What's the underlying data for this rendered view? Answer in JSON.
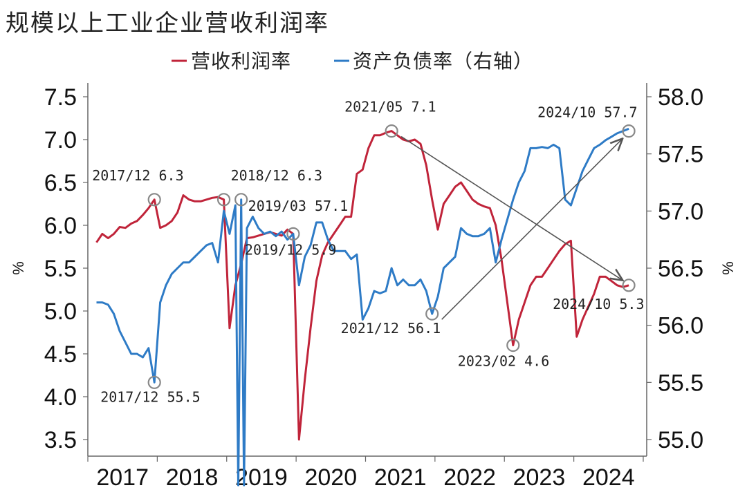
{
  "chart_data": {
    "type": "line",
    "title": "规模以上工业企业营收利润率",
    "y_unit_left": "%",
    "y_unit_right": "%",
    "left_ylim": [
      3.3,
      7.5
    ],
    "right_ylim": [
      54.9,
      58.0
    ],
    "left_ticks": [
      "7.5",
      "7.0",
      "6.5",
      "6.0",
      "5.5",
      "5.0",
      "4.5",
      "4.0",
      "3.5"
    ],
    "right_ticks": [
      "58.0",
      "57.5",
      "57.0",
      "56.5",
      "56.0",
      "55.5",
      "55.0"
    ],
    "x_ticks": [
      "2017",
      "2018",
      "2019",
      "2020",
      "2021",
      "2022",
      "2023",
      "2024"
    ],
    "grid": false,
    "legend_placement": "top-center",
    "series": [
      {
        "name": "营收利润率",
        "axis": "left",
        "color": "#c0243a",
        "points": [
          [
            "2017-02",
            5.8
          ],
          [
            "2017-03",
            5.9
          ],
          [
            "2017-04",
            5.85
          ],
          [
            "2017-05",
            5.9
          ],
          [
            "2017-06",
            5.98
          ],
          [
            "2017-07",
            5.97
          ],
          [
            "2017-08",
            6.02
          ],
          [
            "2017-09",
            6.05
          ],
          [
            "2017-10",
            6.12
          ],
          [
            "2017-11",
            6.2
          ],
          [
            "2017-12",
            6.3
          ],
          [
            "2018-01",
            5.97
          ],
          [
            "2018-02",
            6.0
          ],
          [
            "2018-03",
            6.05
          ],
          [
            "2018-04",
            6.15
          ],
          [
            "2018-05",
            6.35
          ],
          [
            "2018-06",
            6.3
          ],
          [
            "2018-07",
            6.28
          ],
          [
            "2018-08",
            6.28
          ],
          [
            "2018-09",
            6.3
          ],
          [
            "2018-10",
            6.32
          ],
          [
            "2018-11",
            6.33
          ],
          [
            "2018-12",
            6.3
          ],
          [
            "2019-01",
            4.8
          ],
          [
            "2019-02",
            5.3
          ],
          [
            "2019-03",
            5.55
          ],
          [
            "2019-04",
            5.85
          ],
          [
            "2019-05",
            5.86
          ],
          [
            "2019-06",
            5.88
          ],
          [
            "2019-07",
            5.9
          ],
          [
            "2019-08",
            5.92
          ],
          [
            "2019-09",
            5.9
          ],
          [
            "2019-10",
            5.88
          ],
          [
            "2019-11",
            5.95
          ],
          [
            "2019-12",
            5.9
          ],
          [
            "2020-01",
            3.5
          ],
          [
            "2020-02",
            4.2
          ],
          [
            "2020-03",
            4.8
          ],
          [
            "2020-04",
            5.35
          ],
          [
            "2020-05",
            5.65
          ],
          [
            "2020-06",
            5.8
          ],
          [
            "2020-07",
            5.9
          ],
          [
            "2020-08",
            6.0
          ],
          [
            "2020-09",
            6.1
          ],
          [
            "2020-10",
            6.1
          ],
          [
            "2020-11",
            6.6
          ],
          [
            "2020-12",
            6.65
          ],
          [
            "2021-01",
            6.9
          ],
          [
            "2021-02",
            7.05
          ],
          [
            "2021-03",
            7.05
          ],
          [
            "2021-04",
            7.08
          ],
          [
            "2021-05",
            7.1
          ],
          [
            "2021-06",
            7.05
          ],
          [
            "2021-07",
            7.0
          ],
          [
            "2021-08",
            6.98
          ],
          [
            "2021-09",
            7.0
          ],
          [
            "2021-10",
            6.95
          ],
          [
            "2021-11",
            6.7
          ],
          [
            "2021-12",
            6.3
          ],
          [
            "2022-01",
            5.95
          ],
          [
            "2022-02",
            6.25
          ],
          [
            "2022-03",
            6.35
          ],
          [
            "2022-04",
            6.45
          ],
          [
            "2022-05",
            6.5
          ],
          [
            "2022-06",
            6.4
          ],
          [
            "2022-07",
            6.3
          ],
          [
            "2022-08",
            6.25
          ],
          [
            "2022-09",
            6.22
          ],
          [
            "2022-10",
            6.2
          ],
          [
            "2022-11",
            6.0
          ],
          [
            "2022-12",
            5.6
          ],
          [
            "2023-02",
            4.6
          ],
          [
            "2023-03",
            4.9
          ],
          [
            "2023-04",
            5.1
          ],
          [
            "2023-05",
            5.3
          ],
          [
            "2023-06",
            5.4
          ],
          [
            "2023-07",
            5.4
          ],
          [
            "2023-08",
            5.5
          ],
          [
            "2023-09",
            5.6
          ],
          [
            "2023-10",
            5.7
          ],
          [
            "2023-11",
            5.78
          ],
          [
            "2023-12",
            5.82
          ],
          [
            "2024-01",
            4.7
          ],
          [
            "2024-02",
            4.9
          ],
          [
            "2024-03",
            5.05
          ],
          [
            "2024-04",
            5.2
          ],
          [
            "2024-05",
            5.4
          ],
          [
            "2024-06",
            5.4
          ],
          [
            "2024-07",
            5.35
          ],
          [
            "2024-08",
            5.3
          ],
          [
            "2024-09",
            5.28
          ],
          [
            "2024-10",
            5.3
          ]
        ]
      },
      {
        "name": "资产负债率（右轴）",
        "axis": "right",
        "color": "#2e7bc6",
        "points": [
          [
            "2017-02",
            56.2
          ],
          [
            "2017-03",
            56.2
          ],
          [
            "2017-04",
            56.18
          ],
          [
            "2017-05",
            56.1
          ],
          [
            "2017-06",
            55.95
          ],
          [
            "2017-07",
            55.85
          ],
          [
            "2017-08",
            55.75
          ],
          [
            "2017-09",
            55.75
          ],
          [
            "2017-10",
            55.72
          ],
          [
            "2017-11",
            55.8
          ],
          [
            "2017-12",
            55.5
          ],
          [
            "2018-01",
            56.2
          ],
          [
            "2018-02",
            56.35
          ],
          [
            "2018-03",
            56.45
          ],
          [
            "2018-04",
            56.5
          ],
          [
            "2018-05",
            56.55
          ],
          [
            "2018-06",
            56.55
          ],
          [
            "2018-07",
            56.6
          ],
          [
            "2018-08",
            56.65
          ],
          [
            "2018-09",
            56.7
          ],
          [
            "2018-10",
            56.72
          ],
          [
            "2018-11",
            56.55
          ],
          [
            "2018-12",
            57.0
          ],
          [
            "2019-01",
            56.8
          ],
          [
            "2019-02",
            57.05
          ],
          [
            "2019-02.5",
            54.6
          ],
          [
            "2019-03",
            57.1
          ],
          [
            "2019-03.5",
            54.6
          ],
          [
            "2019-04",
            56.85
          ],
          [
            "2019-05",
            56.95
          ],
          [
            "2019-06",
            56.85
          ],
          [
            "2019-07",
            56.8
          ],
          [
            "2019-08",
            56.82
          ],
          [
            "2019-09",
            56.78
          ],
          [
            "2019-10",
            56.82
          ],
          [
            "2019-11",
            56.75
          ],
          [
            "2019-12",
            56.8
          ],
          [
            "2020-01",
            56.35
          ],
          [
            "2020-02",
            56.6
          ],
          [
            "2020-03",
            56.7
          ],
          [
            "2020-04",
            56.9
          ],
          [
            "2020-05",
            56.9
          ],
          [
            "2020-06",
            56.75
          ],
          [
            "2020-07",
            56.65
          ],
          [
            "2020-08",
            56.65
          ],
          [
            "2020-09",
            56.65
          ],
          [
            "2020-10",
            56.58
          ],
          [
            "2020-11",
            56.62
          ],
          [
            "2020-12",
            56.05
          ],
          [
            "2021-01",
            56.15
          ],
          [
            "2021-02",
            56.3
          ],
          [
            "2021-03",
            56.28
          ],
          [
            "2021-04",
            56.3
          ],
          [
            "2021-05",
            56.5
          ],
          [
            "2021-06",
            56.35
          ],
          [
            "2021-07",
            56.4
          ],
          [
            "2021-08",
            56.35
          ],
          [
            "2021-09",
            56.35
          ],
          [
            "2021-10",
            56.4
          ],
          [
            "2021-11",
            56.3
          ],
          [
            "2021-12",
            56.1
          ],
          [
            "2022-01",
            56.25
          ],
          [
            "2022-02",
            56.5
          ],
          [
            "2022-03",
            56.55
          ],
          [
            "2022-04",
            56.6
          ],
          [
            "2022-05",
            56.85
          ],
          [
            "2022-06",
            56.8
          ],
          [
            "2022-07",
            56.78
          ],
          [
            "2022-08",
            56.78
          ],
          [
            "2022-09",
            56.8
          ],
          [
            "2022-10",
            56.85
          ],
          [
            "2022-11",
            56.55
          ],
          [
            "2022-12",
            56.75
          ],
          [
            "2023-02",
            57.1
          ],
          [
            "2023-03",
            57.25
          ],
          [
            "2023-04",
            57.35
          ],
          [
            "2023-05",
            57.55
          ],
          [
            "2023-06",
            57.55
          ],
          [
            "2023-07",
            57.56
          ],
          [
            "2023-08",
            57.55
          ],
          [
            "2023-09",
            57.58
          ],
          [
            "2023-10",
            57.55
          ],
          [
            "2023-11",
            57.1
          ],
          [
            "2023-12",
            57.05
          ],
          [
            "2024-01",
            57.2
          ],
          [
            "2024-02",
            57.35
          ],
          [
            "2024-03",
            57.45
          ],
          [
            "2024-04",
            57.55
          ],
          [
            "2024-05",
            57.58
          ],
          [
            "2024-06",
            57.62
          ],
          [
            "2024-07",
            57.65
          ],
          [
            "2024-08",
            57.68
          ],
          [
            "2024-09",
            57.7
          ],
          [
            "2024-10",
            57.72
          ]
        ]
      }
    ],
    "annotations": [
      {
        "label": "2017/12  6.3",
        "series": 0,
        "x": "2017-12",
        "y": 6.3
      },
      {
        "label": "2018/12  6.3",
        "series": 0,
        "x": "2018-12",
        "y": 6.3
      },
      {
        "label": "2019/12  5.9",
        "series": 0,
        "x": "2019-12",
        "y": 5.9
      },
      {
        "label": "2021/05  7.1",
        "series": 0,
        "x": "2021-05",
        "y": 7.1
      },
      {
        "label": "2023/02  4.6",
        "series": 0,
        "x": "2023-02",
        "y": 4.6
      },
      {
        "label": "2024/10  5.3",
        "series": 0,
        "x": "2024-10",
        "y": 5.3
      },
      {
        "label": "2017/12  55.5",
        "series": 1,
        "x": "2017-12",
        "y": 55.5
      },
      {
        "label": "2019/03  57.1",
        "series": 1,
        "x": "2019-03",
        "y": 57.1
      },
      {
        "label": "2021/12  56.1",
        "series": 1,
        "x": "2021-12",
        "y": 56.1
      },
      {
        "label": "2024/10  57.7",
        "series": 1,
        "x": "2024-10",
        "y": 57.7
      }
    ],
    "trend_arrows": [
      {
        "from_series": 0,
        "from": [
          "2021-05",
          7.1
        ],
        "to": [
          "2024-10",
          5.3
        ]
      },
      {
        "from_series": 1,
        "from": [
          "2021-12",
          56.1
        ],
        "to": [
          "2024-10",
          57.7
        ]
      }
    ]
  }
}
